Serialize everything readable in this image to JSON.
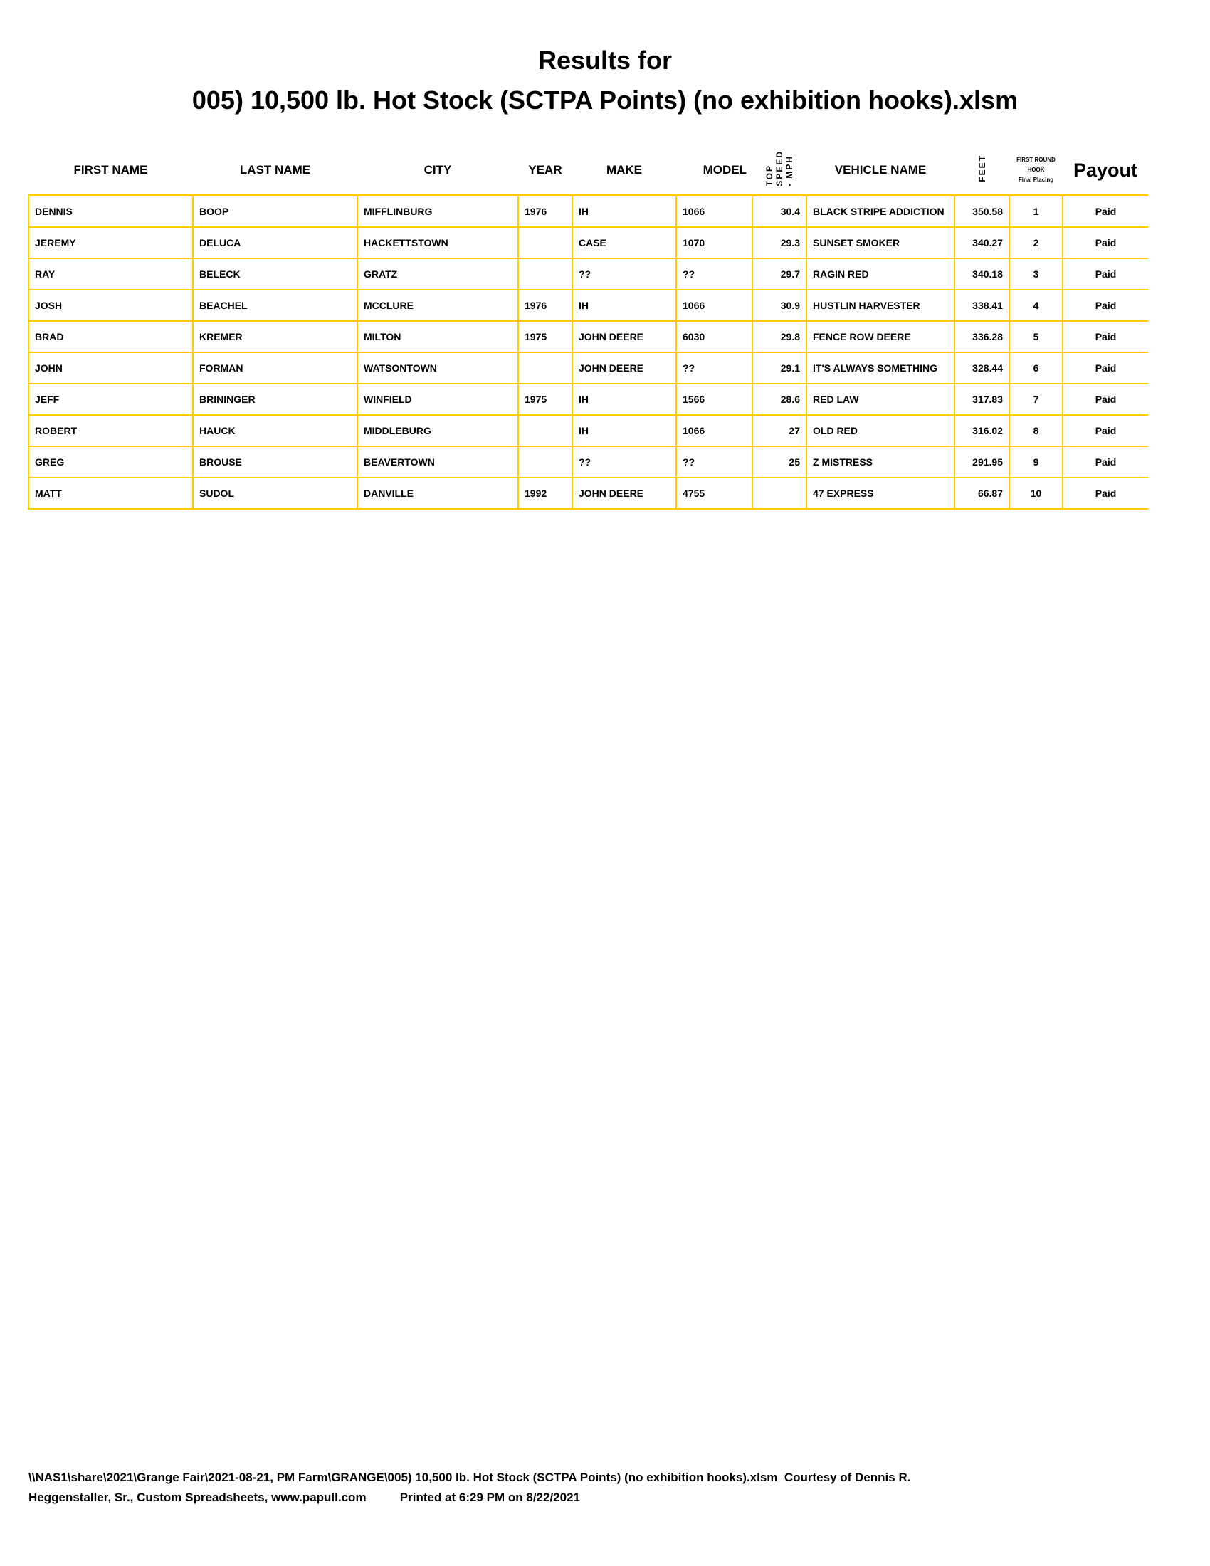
{
  "title_line1": "Results for",
  "title_line2": "005) 10,500 lb. Hot Stock (SCTPA Points) (no exhibition hooks).xlsm",
  "headers": {
    "first_name": "FIRST NAME",
    "last_name": "LAST NAME",
    "city": "CITY",
    "year": "YEAR",
    "make": "MAKE",
    "model": "MODEL",
    "top_speed_1": "TOP",
    "top_speed_2": "SPEED",
    "top_speed_3": "- MPH",
    "vehicle_name": "VEHICLE NAME",
    "feet": "FEET",
    "placing_1": "FIRST ROUND",
    "placing_2": "HOOK",
    "placing_3": "Final Placing",
    "payout": "Payout"
  },
  "border_color": "#ffcc00",
  "rows": [
    {
      "first": "DENNIS",
      "last": "BOOP",
      "city": "MIFFLINBURG",
      "year": "1976",
      "make": "IH",
      "model": "1066",
      "speed": "30.4",
      "vehicle": "BLACK STRIPE ADDICTION",
      "feet": "350.58",
      "place": "1",
      "payout": "Paid"
    },
    {
      "first": "JEREMY",
      "last": "DELUCA",
      "city": "HACKETTSTOWN",
      "year": "",
      "make": "CASE",
      "model": "1070",
      "speed": "29.3",
      "vehicle": "SUNSET SMOKER",
      "feet": "340.27",
      "place": "2",
      "payout": "Paid"
    },
    {
      "first": "RAY",
      "last": "BELECK",
      "city": "GRATZ",
      "year": "",
      "make": "??",
      "model": "??",
      "speed": "29.7",
      "vehicle": "RAGIN RED",
      "feet": "340.18",
      "place": "3",
      "payout": "Paid"
    },
    {
      "first": "JOSH",
      "last": "BEACHEL",
      "city": "MCCLURE",
      "year": "1976",
      "make": "IH",
      "model": "1066",
      "speed": "30.9",
      "vehicle": "HUSTLIN HARVESTER",
      "feet": "338.41",
      "place": "4",
      "payout": "Paid"
    },
    {
      "first": "BRAD",
      "last": "KREMER",
      "city": "MILTON",
      "year": "1975",
      "make": "JOHN DEERE",
      "model": "6030",
      "speed": "29.8",
      "vehicle": "FENCE ROW DEERE",
      "feet": "336.28",
      "place": "5",
      "payout": "Paid"
    },
    {
      "first": "JOHN",
      "last": "FORMAN",
      "city": "WATSONTOWN",
      "year": "",
      "make": "JOHN DEERE",
      "model": "??",
      "speed": "29.1",
      "vehicle": "IT'S ALWAYS SOMETHING",
      "feet": "328.44",
      "place": "6",
      "payout": "Paid"
    },
    {
      "first": "JEFF",
      "last": "BRININGER",
      "city": "WINFIELD",
      "year": "1975",
      "make": "IH",
      "model": "1566",
      "speed": "28.6",
      "vehicle": "RED LAW",
      "feet": "317.83",
      "place": "7",
      "payout": "Paid"
    },
    {
      "first": "ROBERT",
      "last": "HAUCK",
      "city": "MIDDLEBURG",
      "year": "",
      "make": "IH",
      "model": "1066",
      "speed": "27",
      "vehicle": "OLD RED",
      "feet": "316.02",
      "place": "8",
      "payout": "Paid"
    },
    {
      "first": "GREG",
      "last": "BROUSE",
      "city": "BEAVERTOWN",
      "year": "",
      "make": "??",
      "model": "??",
      "speed": "25",
      "vehicle": "Z MISTRESS",
      "feet": "291.95",
      "place": "9",
      "payout": "Paid"
    },
    {
      "first": "MATT",
      "last": "SUDOL",
      "city": "DANVILLE",
      "year": "1992",
      "make": "JOHN DEERE",
      "model": "4755",
      "speed": "",
      "vehicle": "47 EXPRESS",
      "feet": "66.87",
      "place": "10",
      "payout": "Paid"
    }
  ],
  "footer_line1": "\\\\NAS1\\share\\2021\\Grange Fair\\2021-08-21, PM Farm\\GRANGE\\005) 10,500 lb. Hot Stock (SCTPA Points) (no exhibition hooks).xlsm  Courtesy of Dennis R.",
  "footer_line2": "Heggenstaller, Sr., Custom Spreadsheets, www.papull.com          Printed at 6:29 PM on 8/22/2021"
}
